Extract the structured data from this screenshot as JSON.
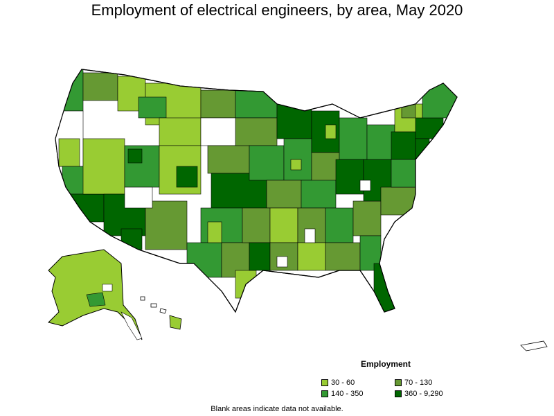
{
  "title": "Employment of electrical engineers, by area, May 2020",
  "legend": {
    "title": "Employment",
    "items": [
      {
        "label": "30 - 60",
        "color": "#99cc33"
      },
      {
        "label": "70 - 130",
        "color": "#669933"
      },
      {
        "label": "140 - 350",
        "color": "#339933"
      },
      {
        "label": "360 - 9,290",
        "color": "#006600"
      }
    ]
  },
  "note": "Blank areas indicate data not available."
}
